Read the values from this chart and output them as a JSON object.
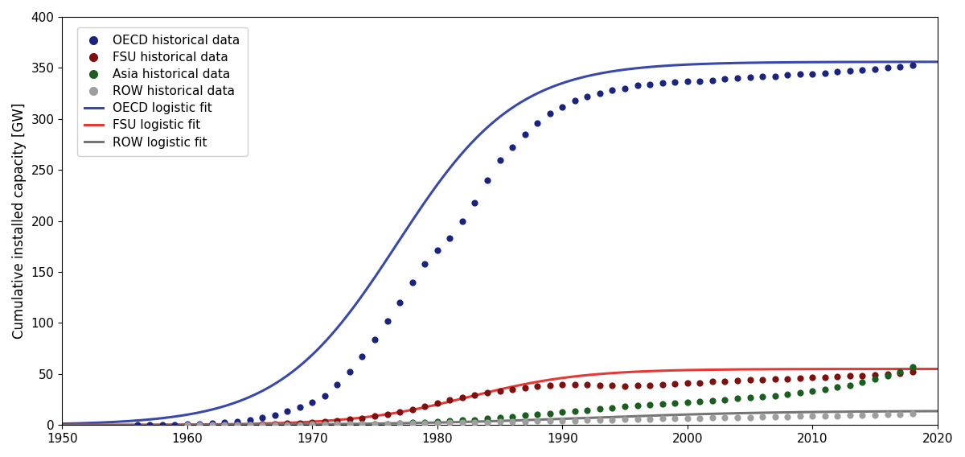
{
  "title": "",
  "ylabel": "Cumulative installed capacity [GW]",
  "xlabel": "",
  "xlim": [
    1950,
    2020
  ],
  "ylim": [
    0,
    400
  ],
  "yticks": [
    0,
    50,
    100,
    150,
    200,
    250,
    300,
    350,
    400
  ],
  "xticks": [
    1950,
    1960,
    1970,
    1980,
    1990,
    2000,
    2010,
    2020
  ],
  "oecd_color": "#1a237e",
  "fsu_color": "#7f1010",
  "asia_color": "#1b5e20",
  "row_color": "#9e9e9e",
  "oecd_fit_color": "#3949ab",
  "fsu_fit_color": "#e53935",
  "row_fit_color": "#757575",
  "oecd_L": 356.0,
  "oecd_k": 0.21,
  "oecd_t0": 1976.8,
  "fsu_L": 55.0,
  "fsu_k": 0.22,
  "fsu_t0": 1982.5,
  "row_L": 14.0,
  "row_k": 0.13,
  "row_t0": 1992.0,
  "oecd_data_years": [
    1956,
    1957,
    1958,
    1959,
    1960,
    1961,
    1962,
    1963,
    1964,
    1965,
    1966,
    1967,
    1968,
    1969,
    1970,
    1971,
    1972,
    1973,
    1974,
    1975,
    1976,
    1977,
    1978,
    1979,
    1980,
    1981,
    1982,
    1983,
    1984,
    1985,
    1986,
    1987,
    1988,
    1989,
    1990,
    1991,
    1992,
    1993,
    1994,
    1995,
    1996,
    1997,
    1998,
    1999,
    2000,
    2001,
    2002,
    2003,
    2004,
    2005,
    2006,
    2007,
    2008,
    2009,
    2010,
    2011,
    2012,
    2013,
    2014,
    2015,
    2016,
    2017,
    2018
  ],
  "oecd_data_values": [
    0.1,
    0.2,
    0.3,
    0.4,
    0.8,
    1.2,
    1.8,
    2.5,
    3.5,
    5.0,
    7.0,
    10.0,
    13.5,
    17.5,
    22.0,
    29.0,
    40.0,
    52.0,
    67.0,
    84.0,
    102.0,
    120.0,
    140.0,
    158.0,
    171.0,
    183.0,
    200.0,
    218.0,
    240.0,
    260.0,
    272.0,
    285.0,
    296.0,
    305.0,
    312.0,
    318.0,
    322.0,
    325.0,
    328.0,
    330.0,
    333.0,
    334.0,
    335.0,
    336.0,
    337.0,
    337.0,
    338.0,
    339.0,
    340.0,
    341.0,
    342.0,
    342.0,
    343.0,
    344.0,
    344.0,
    345.0,
    346.0,
    347.0,
    348.0,
    349.0,
    350.0,
    351.0,
    353.0
  ],
  "fsu_data_years": [
    1964,
    1965,
    1966,
    1967,
    1968,
    1969,
    1970,
    1971,
    1972,
    1973,
    1974,
    1975,
    1976,
    1977,
    1978,
    1979,
    1980,
    1981,
    1982,
    1983,
    1984,
    1985,
    1986,
    1987,
    1988,
    1989,
    1990,
    1991,
    1992,
    1993,
    1994,
    1995,
    1996,
    1997,
    1998,
    1999,
    2000,
    2001,
    2002,
    2003,
    2004,
    2005,
    2006,
    2007,
    2008,
    2009,
    2010,
    2011,
    2012,
    2013,
    2014,
    2015,
    2016,
    2017,
    2018
  ],
  "fsu_data_values": [
    0.4,
    0.6,
    0.9,
    1.2,
    1.6,
    2.1,
    2.8,
    3.6,
    4.5,
    5.5,
    6.8,
    8.5,
    10.5,
    13.0,
    15.5,
    18.5,
    21.5,
    24.5,
    27.0,
    29.5,
    31.5,
    33.5,
    35.0,
    36.5,
    38.0,
    39.0,
    39.5,
    40.0,
    39.5,
    39.0,
    38.5,
    38.0,
    38.5,
    39.0,
    40.0,
    40.5,
    41.0,
    41.5,
    42.5,
    43.0,
    43.5,
    44.0,
    44.5,
    45.0,
    45.5,
    46.0,
    46.5,
    47.0,
    47.5,
    48.0,
    48.5,
    49.0,
    50.0,
    51.0,
    52.5
  ],
  "asia_data_years": [
    1970,
    1971,
    1972,
    1973,
    1974,
    1975,
    1976,
    1977,
    1978,
    1979,
    1980,
    1981,
    1982,
    1983,
    1984,
    1985,
    1986,
    1987,
    1988,
    1989,
    1990,
    1991,
    1992,
    1993,
    1994,
    1995,
    1996,
    1997,
    1998,
    1999,
    2000,
    2001,
    2002,
    2003,
    2004,
    2005,
    2006,
    2007,
    2008,
    2009,
    2010,
    2011,
    2012,
    2013,
    2014,
    2015,
    2016,
    2017,
    2018
  ],
  "asia_data_values": [
    0.1,
    0.2,
    0.3,
    0.5,
    0.7,
    1.0,
    1.4,
    1.8,
    2.3,
    2.8,
    3.3,
    3.9,
    4.6,
    5.3,
    6.2,
    7.2,
    8.3,
    9.3,
    10.4,
    11.5,
    12.6,
    13.7,
    14.8,
    15.9,
    17.0,
    18.1,
    19.2,
    20.0,
    20.8,
    21.5,
    22.3,
    23.1,
    24.0,
    25.0,
    26.0,
    27.0,
    28.0,
    29.0,
    30.0,
    31.5,
    33.0,
    35.0,
    37.0,
    39.0,
    42.0,
    45.0,
    48.0,
    52.0,
    57.0
  ],
  "row_data_years": [
    1960,
    1961,
    1962,
    1963,
    1964,
    1965,
    1966,
    1967,
    1968,
    1969,
    1970,
    1971,
    1972,
    1973,
    1974,
    1975,
    1976,
    1977,
    1978,
    1979,
    1980,
    1981,
    1982,
    1983,
    1984,
    1985,
    1986,
    1987,
    1988,
    1989,
    1990,
    1991,
    1992,
    1993,
    1994,
    1995,
    1996,
    1997,
    1998,
    1999,
    2000,
    2001,
    2002,
    2003,
    2004,
    2005,
    2006,
    2007,
    2008,
    2009,
    2010,
    2011,
    2012,
    2013,
    2014,
    2015,
    2016,
    2017,
    2018
  ],
  "row_data_values": [
    0.1,
    0.1,
    0.1,
    0.2,
    0.2,
    0.3,
    0.3,
    0.4,
    0.5,
    0.6,
    0.7,
    0.8,
    0.9,
    1.0,
    1.1,
    1.2,
    1.4,
    1.5,
    1.7,
    1.9,
    2.1,
    2.3,
    2.5,
    2.7,
    2.9,
    3.1,
    3.3,
    3.6,
    3.8,
    4.1,
    4.3,
    4.5,
    4.8,
    5.0,
    5.2,
    5.5,
    5.7,
    6.0,
    6.2,
    6.4,
    6.6,
    6.8,
    7.0,
    7.2,
    7.4,
    7.6,
    7.8,
    8.0,
    8.3,
    8.5,
    8.7,
    9.0,
    9.2,
    9.5,
    9.7,
    10.0,
    10.2,
    10.5,
    11.0
  ],
  "dot_size": 35,
  "line_width": 2.2
}
